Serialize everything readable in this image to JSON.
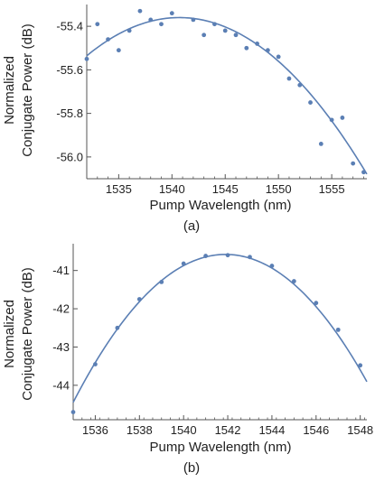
{
  "figure": {
    "line_color": "#5b7fb4",
    "point_color": "#5b7fb4",
    "axis_color": "#555555"
  },
  "chart_data": [
    {
      "type": "scatter",
      "caption": "(a)",
      "xlabel": "Pump Wavelength (nm)",
      "ylabel_lines": [
        "Normalized",
        "Conjugate Power (dB)"
      ],
      "xlim": [
        1532,
        1558.3
      ],
      "ylim": [
        -56.1,
        -55.3
      ],
      "x_ticks": [
        1535,
        1540,
        1545,
        1550,
        1555
      ],
      "y_ticks": [
        -55.4,
        -55.6,
        -55.8,
        -56.0
      ],
      "y_tick_labels": [
        "-55.4",
        "-55.6",
        "-55.8",
        "-56.0"
      ],
      "grid": false,
      "points": [
        {
          "x": 1532,
          "y": -55.55
        },
        {
          "x": 1533,
          "y": -55.39
        },
        {
          "x": 1534,
          "y": -55.46
        },
        {
          "x": 1535,
          "y": -55.51
        },
        {
          "x": 1536,
          "y": -55.42
        },
        {
          "x": 1537,
          "y": -55.33
        },
        {
          "x": 1538,
          "y": -55.37
        },
        {
          "x": 1539,
          "y": -55.39
        },
        {
          "x": 1540,
          "y": -55.34
        },
        {
          "x": 1542,
          "y": -55.37
        },
        {
          "x": 1543,
          "y": -55.44
        },
        {
          "x": 1544,
          "y": -55.39
        },
        {
          "x": 1545,
          "y": -55.42
        },
        {
          "x": 1546,
          "y": -55.44
        },
        {
          "x": 1547,
          "y": -55.5
        },
        {
          "x": 1548,
          "y": -55.48
        },
        {
          "x": 1549,
          "y": -55.51
        },
        {
          "x": 1550,
          "y": -55.54
        },
        {
          "x": 1551,
          "y": -55.64
        },
        {
          "x": 1552,
          "y": -55.67
        },
        {
          "x": 1553,
          "y": -55.75
        },
        {
          "x": 1554,
          "y": -55.94
        },
        {
          "x": 1555,
          "y": -55.83
        },
        {
          "x": 1556,
          "y": -55.82
        },
        {
          "x": 1557,
          "y": -56.03
        },
        {
          "x": 1558,
          "y": -56.07
        }
      ],
      "fit": {
        "type": "quadratic",
        "vertex_x": 1540.7,
        "vertex_y": -55.36,
        "a": -0.00232
      }
    },
    {
      "type": "scatter",
      "caption": "(b)",
      "xlabel": "Pump Wavelength (nm)",
      "ylabel_lines": [
        "Normalized",
        "Conjugate Power (dB)"
      ],
      "xlim": [
        1535,
        1548.3
      ],
      "ylim": [
        -44.9,
        -40.3
      ],
      "x_ticks": [
        1536,
        1538,
        1540,
        1542,
        1544,
        1546,
        1548
      ],
      "y_ticks": [
        -41,
        -42,
        -43,
        -44
      ],
      "y_tick_labels": [
        "-41",
        "-42",
        "-43",
        "-44"
      ],
      "grid": false,
      "points": [
        {
          "x": 1535,
          "y": -44.7
        },
        {
          "x": 1536,
          "y": -43.45
        },
        {
          "x": 1537,
          "y": -42.5
        },
        {
          "x": 1538,
          "y": -41.75
        },
        {
          "x": 1539,
          "y": -41.3
        },
        {
          "x": 1540,
          "y": -40.82
        },
        {
          "x": 1541,
          "y": -40.62
        },
        {
          "x": 1542,
          "y": -40.6
        },
        {
          "x": 1543,
          "y": -40.65
        },
        {
          "x": 1544,
          "y": -40.88
        },
        {
          "x": 1545,
          "y": -41.28
        },
        {
          "x": 1546,
          "y": -41.85
        },
        {
          "x": 1547,
          "y": -42.55
        },
        {
          "x": 1548,
          "y": -43.48
        }
      ],
      "fit": {
        "type": "quadratic",
        "vertex_x": 1541.9,
        "vertex_y": -40.58,
        "a": -0.0812
      }
    }
  ]
}
